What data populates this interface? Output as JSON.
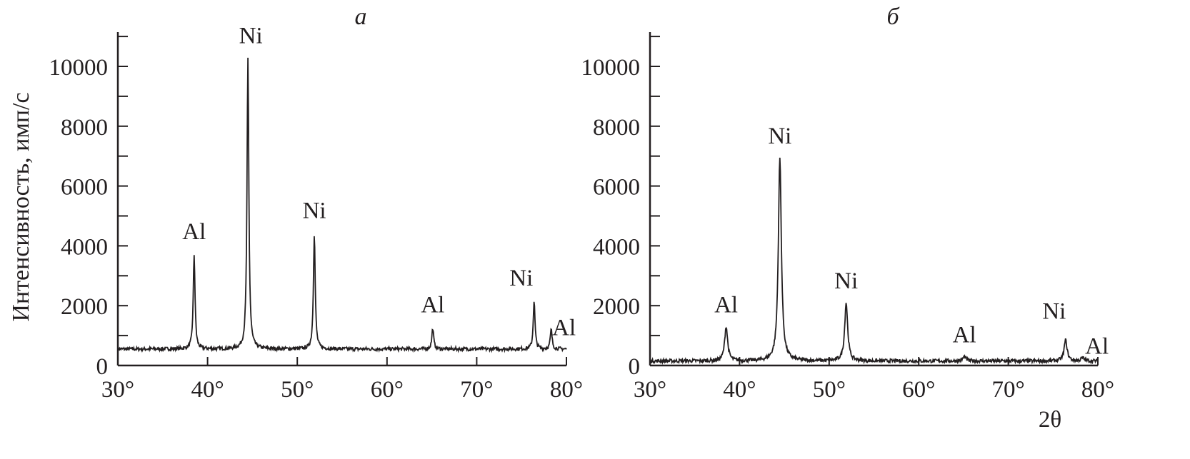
{
  "chart_data": [
    {
      "type": "line",
      "panel_label": "а",
      "ylabel": "Интенсивность, имп/с",
      "xlabel": "",
      "xlim": [
        30,
        80
      ],
      "ylim": [
        0,
        11200
      ],
      "x_ticks": [
        "30°",
        "40°",
        "50°",
        "60°",
        "70°",
        "80°"
      ],
      "y_ticks": [
        "0",
        "2000",
        "4000",
        "6000",
        "8000",
        "10000"
      ],
      "y_minor_step": 1000,
      "grid": false,
      "color": "#231f20",
      "baseline": 550,
      "peaks": [
        {
          "x": 38.5,
          "y": 3700,
          "label": "Al"
        },
        {
          "x": 44.5,
          "y": 10250,
          "label": "Ni"
        },
        {
          "x": 51.9,
          "y": 4400,
          "label": "Ni"
        },
        {
          "x": 65.1,
          "y": 1250,
          "label": "Al"
        },
        {
          "x": 76.4,
          "y": 2150,
          "label": "Ni"
        },
        {
          "x": 78.3,
          "y": 1200,
          "label": "Al"
        }
      ]
    },
    {
      "type": "line",
      "panel_label": "б",
      "ylabel": "",
      "xlabel": "2θ",
      "xlim": [
        30,
        80
      ],
      "ylim": [
        0,
        11200
      ],
      "x_ticks": [
        "30°",
        "40°",
        "50°",
        "60°",
        "70°",
        "80°"
      ],
      "y_ticks": [
        "0",
        "2000",
        "4000",
        "6000",
        "8000",
        "10000"
      ],
      "y_minor_step": 1000,
      "grid": false,
      "color": "#231f20",
      "baseline": 150,
      "peaks": [
        {
          "x": 38.5,
          "y": 1300,
          "label": "Al"
        },
        {
          "x": 44.5,
          "y": 6950,
          "label": "Ni"
        },
        {
          "x": 51.9,
          "y": 2100,
          "label": "Ni"
        },
        {
          "x": 65.1,
          "y": 300,
          "label": "Al"
        },
        {
          "x": 76.4,
          "y": 850,
          "label": "Ni"
        },
        {
          "x": 78.3,
          "y": 250,
          "label": "Al"
        }
      ]
    }
  ]
}
